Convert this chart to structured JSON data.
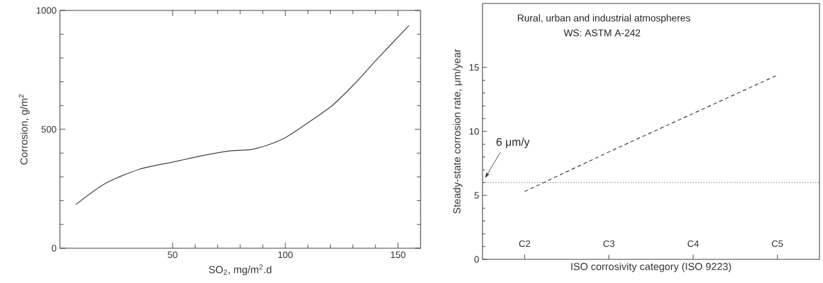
{
  "chart_data": [
    {
      "type": "line",
      "xlabel": "SO$_{2}$, mg/m$^{2}$.d",
      "ylabel": "Corrosion, g/m$^{2}$",
      "x": [
        7.0,
        20.1,
        35.3,
        50,
        63.5,
        75.2,
        84.6,
        91.6,
        100,
        110.4,
        120.9,
        130.3,
        140.9,
        154.9
      ],
      "values": [
        183,
        272,
        332,
        362,
        390,
        409,
        415,
        432,
        465,
        530,
        601,
        687,
        797,
        937
      ],
      "color": "#404040",
      "xlim": [
        0,
        160
      ],
      "ylim": [
        0,
        1000
      ],
      "xticks": [
        50,
        100,
        150
      ],
      "yticks": [
        0,
        500,
        1000
      ]
    },
    {
      "type": "line",
      "xlabel": "ISO corrosivity category (ISO 9223)",
      "ylabel": "Steady-state corrosion rate, μm/year",
      "categories": [
        "C2",
        "C3",
        "C4",
        "C5"
      ],
      "values": [
        5.3,
        8.4,
        11.4,
        14.4
      ],
      "color": "#404040",
      "line_style": "dashed",
      "ylim": [
        0,
        20
      ],
      "yticks": [
        0,
        5,
        10,
        15
      ],
      "ref_lines": [
        {
          "axis": "y",
          "value": 6,
          "label": "6 μm/y",
          "line_style": "dotted"
        }
      ],
      "annotations": [
        "Rural, urban and industrial atmospheres",
        "WS: ASTM A-242"
      ]
    }
  ]
}
